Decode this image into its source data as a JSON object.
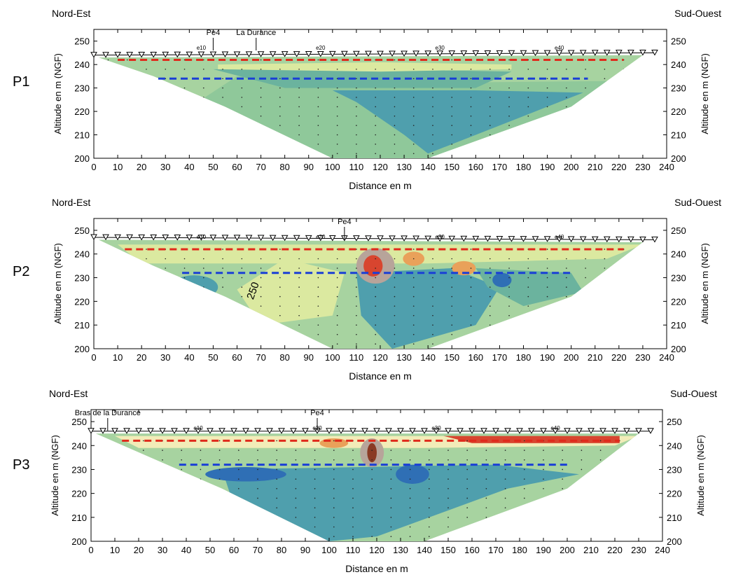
{
  "chart_data": [
    {
      "type": "heatmap",
      "profile_label": "P1",
      "left_direction": "Nord-Est",
      "right_direction": "Sud-Ouest",
      "xlabel": "Distance en m",
      "ylabel_left": "Altitude en m (NGF)",
      "ylabel_right": "Altitude en m (NGF)",
      "xlim": [
        0,
        240
      ],
      "ylim": [
        200,
        255
      ],
      "x_ticks": [
        0,
        10,
        20,
        30,
        40,
        50,
        60,
        70,
        80,
        90,
        100,
        110,
        120,
        130,
        140,
        150,
        160,
        170,
        180,
        190,
        200,
        210,
        220,
        230,
        240
      ],
      "y_ticks": [
        200,
        210,
        220,
        230,
        240,
        250
      ],
      "electrode_labels": [
        {
          "label": "e10",
          "x": 45
        },
        {
          "label": "e20",
          "x": 95
        },
        {
          "label": "e30",
          "x": 145
        },
        {
          "label": "e40",
          "x": 195
        }
      ],
      "annotations": [
        {
          "text": "Pe4",
          "x": 50,
          "y": 251
        },
        {
          "text": "La Durance",
          "x": 68,
          "y": 251
        }
      ],
      "surface_start": 244,
      "surface_end": 245,
      "red_dashed_line": {
        "altitude": 242,
        "x_range": [
          10,
          222
        ]
      },
      "blue_dashed_line": {
        "altitude": 234,
        "x_range": [
          27,
          207
        ]
      },
      "contour_labels": []
    },
    {
      "type": "heatmap",
      "profile_label": "P2",
      "left_direction": "Nord-Est",
      "right_direction": "Sud-Ouest",
      "xlabel": "Distance en m",
      "ylabel_left": "Altitude en m (NGF)",
      "ylabel_right": "Altitude en m (NGF)",
      "xlim": [
        0,
        240
      ],
      "ylim": [
        200,
        255
      ],
      "x_ticks": [
        0,
        10,
        20,
        30,
        40,
        50,
        60,
        70,
        80,
        90,
        100,
        110,
        120,
        130,
        140,
        150,
        160,
        170,
        180,
        190,
        200,
        210,
        220,
        230,
        240
      ],
      "y_ticks": [
        200,
        210,
        220,
        230,
        240,
        250
      ],
      "electrode_labels": [
        {
          "label": "e10",
          "x": 45
        },
        {
          "label": "e20",
          "x": 95
        },
        {
          "label": "e30",
          "x": 145
        },
        {
          "label": "e40",
          "x": 195
        }
      ],
      "annotations": [
        {
          "text": "Pe4",
          "x": 105,
          "y": 251
        }
      ],
      "surface_start": 247,
      "surface_end": 246,
      "red_dashed_line": {
        "altitude": 242,
        "x_range": [
          13,
          222
        ]
      },
      "blue_dashed_line": {
        "altitude": 232,
        "x_range": [
          37,
          200
        ]
      },
      "contour_labels": [
        {
          "text": "250",
          "x": 68,
          "y": 224
        }
      ]
    },
    {
      "type": "heatmap",
      "profile_label": "P3",
      "left_direction": "Nord-Est",
      "right_direction": "Sud-Ouest",
      "xlabel": "Distance en m",
      "ylabel_left": "Altitude en m (NGF)",
      "ylabel_right": "Altitude en m (NGF)",
      "xlim": [
        0,
        240
      ],
      "ylim": [
        200,
        255
      ],
      "x_ticks": [
        0,
        10,
        20,
        30,
        40,
        50,
        60,
        70,
        80,
        90,
        100,
        110,
        120,
        130,
        140,
        150,
        160,
        170,
        180,
        190,
        200,
        210,
        220,
        230,
        240
      ],
      "y_ticks": [
        200,
        210,
        220,
        230,
        240,
        250
      ],
      "electrode_labels": [
        {
          "label": "e10",
          "x": 45
        },
        {
          "label": "e20",
          "x": 95
        },
        {
          "label": "e30",
          "x": 145
        },
        {
          "label": "e40",
          "x": 195
        }
      ],
      "annotations": [
        {
          "text": "Bras de la Durance",
          "x": 7,
          "y": 251
        },
        {
          "text": "Pe4",
          "x": 95,
          "y": 251
        }
      ],
      "surface_start": 246,
      "surface_end": 246,
      "red_dashed_line": {
        "altitude": 242,
        "x_range": [
          13,
          222
        ]
      },
      "blue_dashed_line": {
        "altitude": 232,
        "x_range": [
          37,
          200
        ]
      },
      "contour_labels": []
    }
  ]
}
